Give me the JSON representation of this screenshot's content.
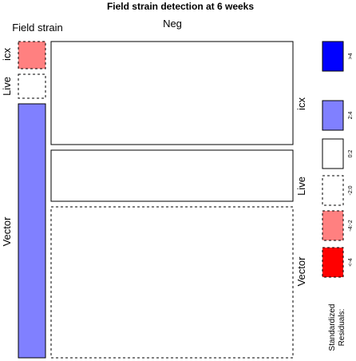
{
  "chart_data": {
    "type": "mosaic",
    "title": "Field strain detection at 6 weeks",
    "column_variable": "Field strain",
    "column_levels": [
      "Field strain",
      "Neg"
    ],
    "row_levels": [
      "icx",
      "Live",
      "Vector"
    ],
    "cells": [
      {
        "column": "Field strain",
        "row": "icx",
        "residual_band": "-4:-2"
      },
      {
        "column": "Field strain",
        "row": "Live",
        "residual_band": "-2:0"
      },
      {
        "column": "Field strain",
        "row": "Vector",
        "residual_band": "2:4"
      },
      {
        "column": "Neg",
        "row": "icx",
        "residual_band": "0:2"
      },
      {
        "column": "Neg",
        "row": "Live",
        "residual_band": "0:2"
      },
      {
        "column": "Neg",
        "row": "Vector",
        "residual_band": "-2:0"
      }
    ],
    "legend": {
      "title_lines": [
        "Standardized",
        "Residuals:"
      ],
      "bands": [
        {
          "label": ">4",
          "fill": "#0000ff",
          "border": "solid"
        },
        {
          "label": "2:4",
          "fill": "#8080ff",
          "border": "solid"
        },
        {
          "label": "0:2",
          "fill": "#ffffff",
          "border": "solid"
        },
        {
          "label": "-2:0",
          "fill": "#ffffff",
          "border": "dashed"
        },
        {
          "label": "-4:-2",
          "fill": "#ff8080",
          "border": "dashed"
        },
        {
          "label": "<-4",
          "fill": "#ff0000",
          "border": "dashed"
        }
      ]
    }
  }
}
